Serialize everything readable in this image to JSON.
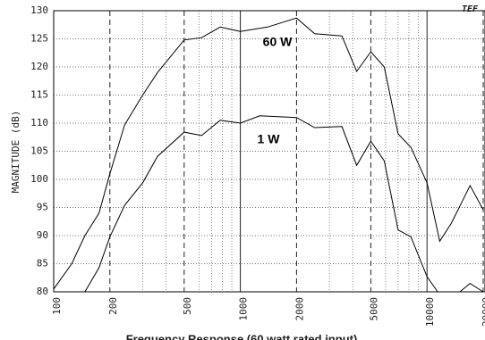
{
  "chart_data": {
    "type": "line",
    "x_label": "Frequency Response (60 watt rated input)",
    "y_label": "MAGNITUDE (dB)",
    "logo": "TEF",
    "xscale": "log",
    "xlim": [
      100,
      20000
    ],
    "xticks": [
      100,
      200,
      500,
      1000,
      2000,
      5000,
      10000,
      20000
    ],
    "xminorticks": [
      300,
      400,
      600,
      700,
      800,
      900,
      3000,
      4000,
      6000,
      7000,
      8000,
      9000
    ],
    "ylim": [
      80,
      130
    ],
    "yticks": [
      80,
      85,
      90,
      95,
      100,
      105,
      110,
      115,
      120,
      125,
      130
    ],
    "grid": true,
    "series": [
      {
        "name": "60 W",
        "color": "#000000",
        "x": [
          100,
          125,
          147,
          175,
          200,
          240,
          300,
          360,
          500,
          620,
          780,
          1000,
          1400,
          2000,
          2500,
          3500,
          4200,
          5000,
          5900,
          7000,
          8200,
          10000,
          11700,
          13500,
          17000,
          20000
        ],
        "values": [
          80.5,
          85,
          90,
          94,
          101,
          109.7,
          115,
          119,
          124.8,
          125.2,
          127.1,
          126.3,
          127.1,
          128.7,
          125.9,
          125.5,
          119.2,
          122.7,
          120,
          108.1,
          105.7,
          99.4,
          89,
          92.2,
          98.9,
          94.6
        ]
      },
      {
        "name": "1 W",
        "color": "#000000",
        "x": [
          147,
          175,
          200,
          240,
          300,
          360,
          500,
          620,
          780,
          1000,
          1270,
          2000,
          2500,
          3500,
          4200,
          5000,
          5900,
          7000,
          8200,
          10000,
          11400,
          13000,
          15000,
          17000,
          20000
        ],
        "values": [
          80,
          84.3,
          89.8,
          95.4,
          99.4,
          104.1,
          108.4,
          107.8,
          110.5,
          110,
          111.3,
          111,
          109.2,
          109.4,
          102.5,
          106.8,
          103.3,
          91,
          89.8,
          82.7,
          80,
          null,
          80,
          81.5,
          80
        ]
      }
    ]
  }
}
